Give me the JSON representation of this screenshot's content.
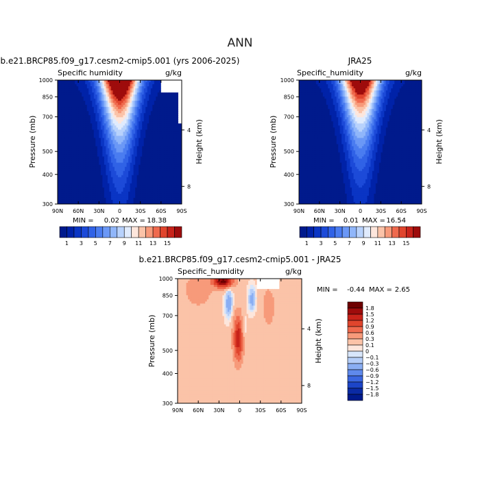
{
  "figure": {
    "title": "ANN"
  },
  "chart_data": [
    {
      "type": "heatmap",
      "case": "b.e21.BRCP85.f09_g17.cesm2-cmip5.001 (yrs 2006-2025)",
      "variable": "Specific humidity",
      "units": "g/kg",
      "xlabel": "",
      "ylabel": "Pressure (mb)",
      "y2label": "Height (km)",
      "x_ticks": [
        "90N",
        "60N",
        "30N",
        "0",
        "30S",
        "60S",
        "90S"
      ],
      "y_ticks": [
        "300",
        "400",
        "500",
        "700",
        "850",
        "1000"
      ],
      "y2_ticks": [
        "8",
        "4"
      ],
      "xlim": [
        90,
        -90
      ],
      "ylim": [
        1000,
        300
      ],
      "y_scale": "log",
      "min_label": "MIN =",
      "min_value": "0.02",
      "max_label": "MAX =",
      "max_value": "18.38",
      "colorbar_labels": [
        "1",
        "3",
        "5",
        "7",
        "9",
        "11",
        "13",
        "15"
      ],
      "colorbar_levels": [
        1,
        2,
        3,
        4,
        5,
        6,
        7,
        8,
        9,
        10,
        11,
        12,
        13,
        14,
        15
      ],
      "peak_value": 18.38,
      "missing_region": "high pressure, 65S-90S"
    },
    {
      "type": "heatmap",
      "case": "JRA25",
      "variable": "Specific_humidity",
      "units": "g/kg",
      "xlabel": "",
      "ylabel": "Pressure (mb)",
      "y2label": "Height (km)",
      "x_ticks": [
        "90N",
        "60N",
        "30N",
        "0",
        "30S",
        "60S",
        "90S"
      ],
      "y_ticks": [
        "300",
        "400",
        "500",
        "700",
        "850",
        "1000"
      ],
      "y2_ticks": [
        "8",
        "4"
      ],
      "xlim": [
        90,
        -90
      ],
      "ylim": [
        1000,
        300
      ],
      "y_scale": "log",
      "min_label": "MIN =",
      "min_value": "0.01",
      "max_label": "MAX =",
      "max_value": "16.54",
      "colorbar_labels": [
        "1",
        "3",
        "5",
        "7",
        "9",
        "11",
        "13",
        "15"
      ],
      "colorbar_levels": [
        1,
        2,
        3,
        4,
        5,
        6,
        7,
        8,
        9,
        10,
        11,
        12,
        13,
        14,
        15
      ],
      "peak_value": 16.54
    },
    {
      "type": "heatmap",
      "case": "b.e21.BRCP85.f09_g17.cesm2-cmip5.001 - JRA25",
      "variable": "Specific_humidity",
      "units": "g/kg",
      "xlabel": "",
      "ylabel": "Pressure (mb)",
      "y2label": "Height (km)",
      "x_ticks": [
        "90N",
        "60N",
        "30N",
        "0",
        "30S",
        "60S",
        "90S"
      ],
      "y_ticks": [
        "300",
        "400",
        "500",
        "700",
        "850",
        "1000"
      ],
      "y2_ticks": [
        "8",
        "4"
      ],
      "xlim": [
        90,
        -90
      ],
      "ylim": [
        1000,
        300
      ],
      "y_scale": "log",
      "min_label": "MIN =",
      "min_value": "-0.44",
      "max_label": "MAX =",
      "max_value": "2.65",
      "colorbar_labels": [
        "1.8",
        "1.5",
        "1.2",
        "0.9",
        "0.6",
        "0.3",
        "0.1",
        "0",
        "−0.1",
        "−0.3",
        "−0.6",
        "−0.9",
        "−1.2",
        "−1.5",
        "−1.8"
      ],
      "colorbar_levels": [
        1.8,
        1.5,
        1.2,
        0.9,
        0.6,
        0.3,
        0.1,
        0,
        -0.1,
        -0.3,
        -0.6,
        -0.9,
        -1.2,
        -1.5,
        -1.8
      ],
      "features": [
        {
          "lat": 0,
          "p": 550,
          "value": 1.2,
          "note": "moist anomaly column near equator, 400-700 mb"
        },
        {
          "lat": 25,
          "p": 950,
          "value": 1.5,
          "note": "surface moist anomaly 40N-10N"
        },
        {
          "lat": 15,
          "p": 800,
          "value": -0.4,
          "note": "dry anomaly 20N-5N, 700-900 mb"
        },
        {
          "lat": -15,
          "p": 820,
          "value": -0.3,
          "note": "dry anomaly 10S-25S, 750-900 mb"
        }
      ],
      "missing_region": "high pressure, 30S-60S"
    }
  ],
  "colors": {
    "frame": "#000000",
    "missing": "#ffffff",
    "full_palette": [
      "#001a8c",
      "#0022a8",
      "#0a35c4",
      "#1c4ad8",
      "#3062e6",
      "#4a7cf0",
      "#6b98f6",
      "#90b6fa",
      "#b8d2fc",
      "#e0ebfd",
      "#fde6dc",
      "#fbc3a8",
      "#f79a7a",
      "#ef6a4e",
      "#e0452d",
      "#c8231a",
      "#9e0c0c",
      "#6e0000"
    ],
    "diff_palette": [
      "#6e0000",
      "#9e0c0c",
      "#c8231a",
      "#e0452d",
      "#ef6a4e",
      "#f79a7a",
      "#fbc3a8",
      "#fde6dc",
      "#d8e6fb",
      "#b4cdf8",
      "#8aaef3",
      "#5f89ec",
      "#3a66e0",
      "#1c45c8",
      "#0a2aa4",
      "#001a8c"
    ]
  }
}
